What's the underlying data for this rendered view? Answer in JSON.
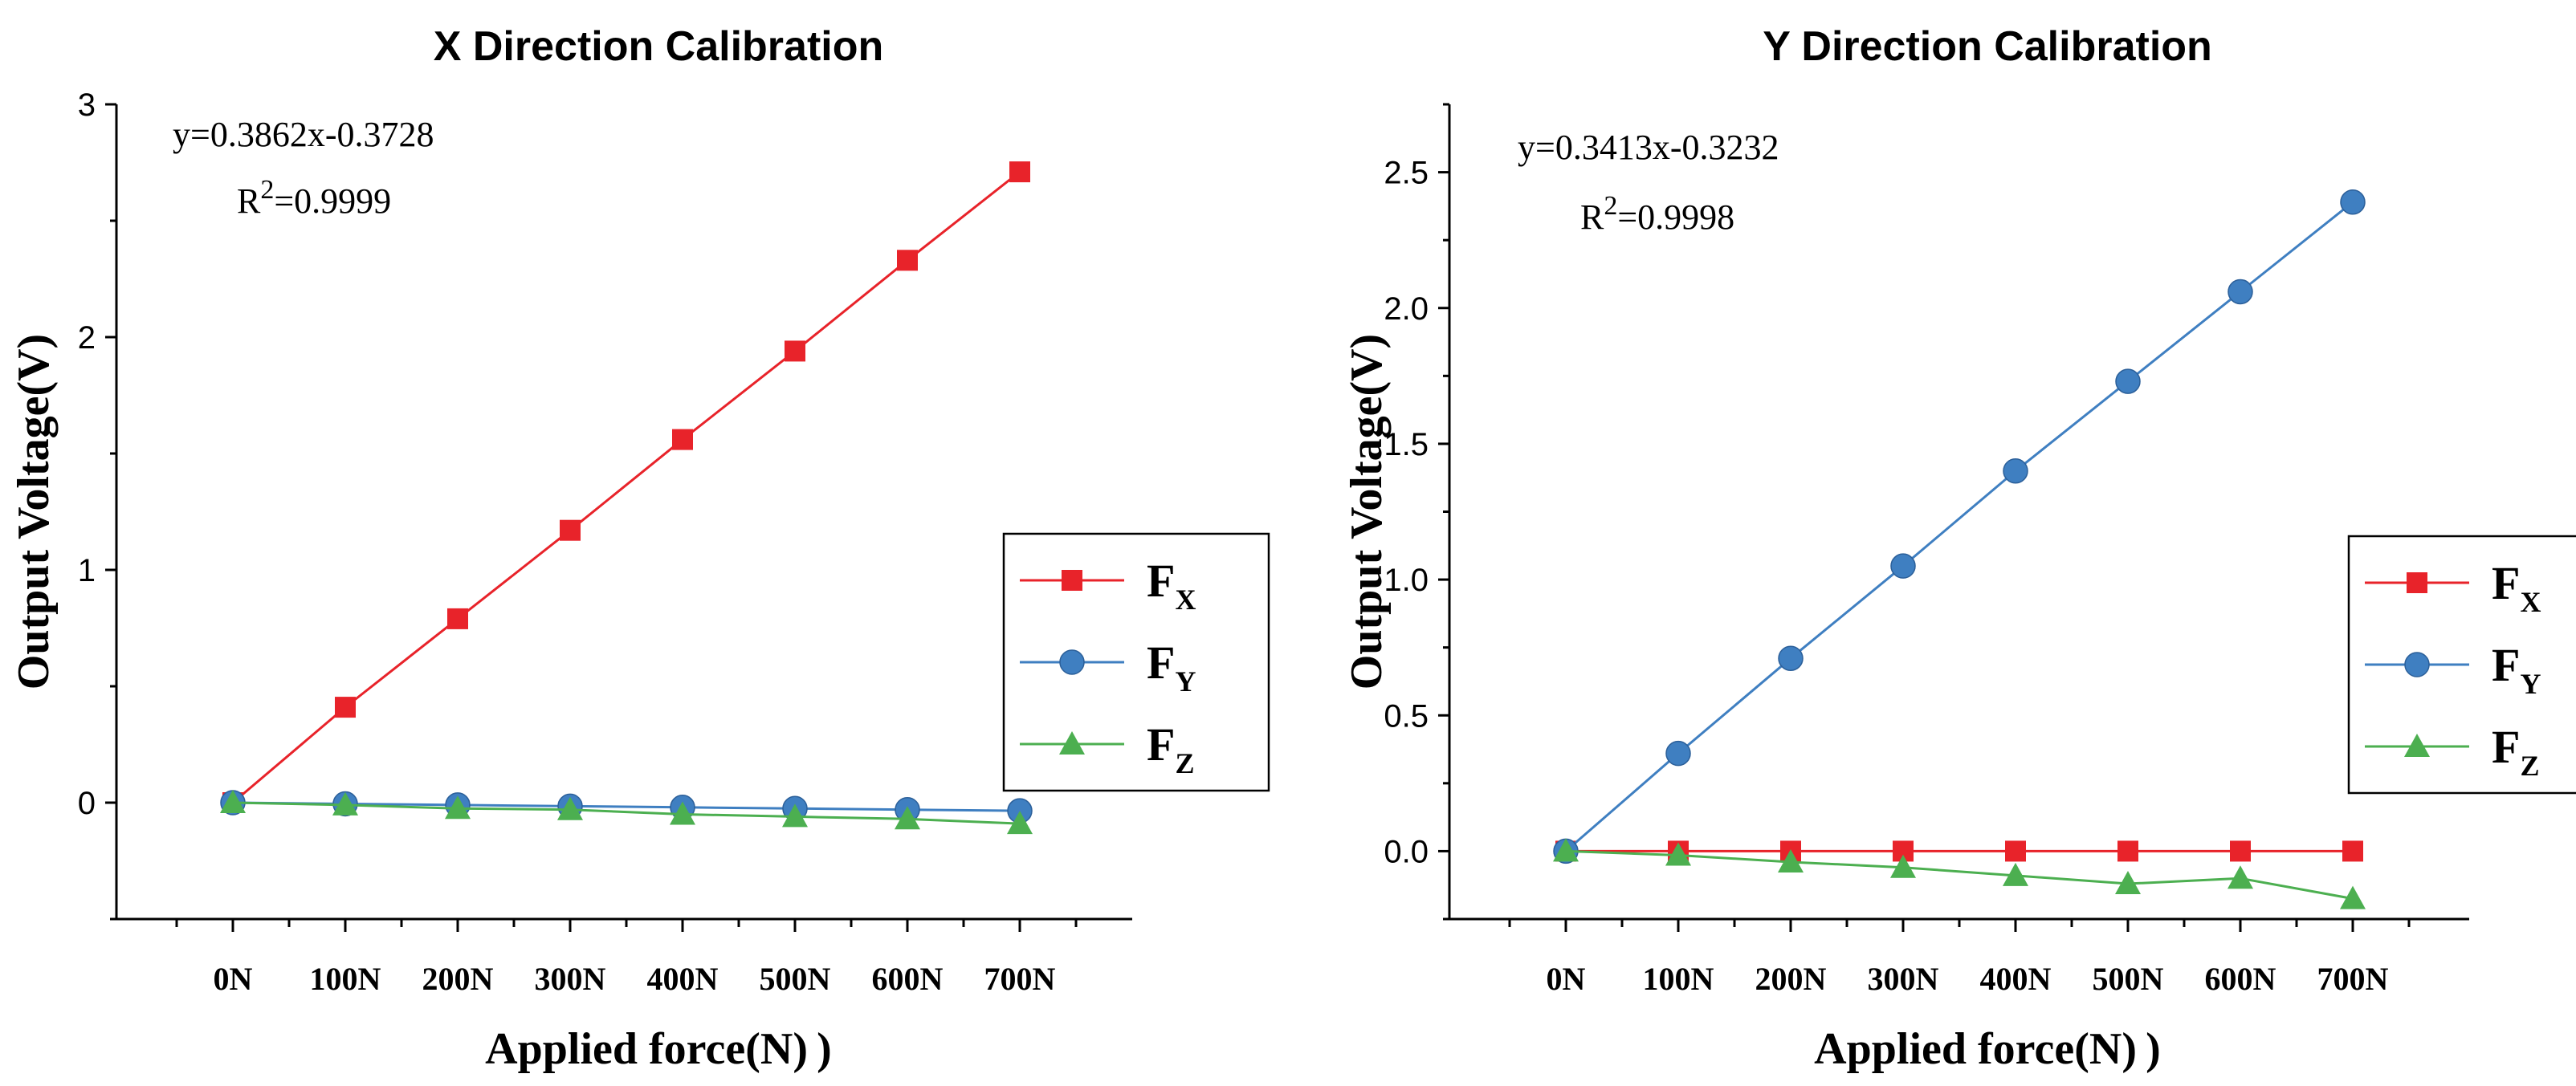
{
  "chart_data": [
    {
      "type": "line",
      "title": "X Direction Calibration",
      "xlabel": "Applied force(N) )",
      "ylabel": "Output Voltage(V)",
      "categories": [
        "0N",
        "100N",
        "200N",
        "300N",
        "400N",
        "500N",
        "600N",
        "700N"
      ],
      "ylim": [
        -0.5,
        3
      ],
      "yticks": [
        0,
        1,
        2,
        3
      ],
      "ytick_labels": [
        "0",
        "1",
        "2",
        "3"
      ],
      "annotation": {
        "equation": "y=0.3862x-0.3728",
        "r2_prefix": "R",
        "r2_sup": "2",
        "r2_value": "=0.9999"
      },
      "legend": {
        "placement": "right"
      },
      "series": [
        {
          "name": "F",
          "subscript": "X",
          "color": "#e8232a",
          "marker": "square",
          "values": [
            0,
            0.41,
            0.79,
            1.17,
            1.56,
            1.94,
            2.33,
            2.71
          ]
        },
        {
          "name": "F",
          "subscript": "Y",
          "color": "#3f7fc1",
          "marker": "circle",
          "values": [
            0,
            -0.005,
            -0.01,
            -0.015,
            -0.02,
            -0.025,
            -0.03,
            -0.035
          ]
        },
        {
          "name": "F",
          "subscript": "Z",
          "color": "#4caf50",
          "marker": "triangle",
          "values": [
            0,
            -0.01,
            -0.025,
            -0.03,
            -0.05,
            -0.06,
            -0.07,
            -0.09
          ]
        }
      ]
    },
    {
      "type": "line",
      "title": "Y Direction Calibration",
      "xlabel": "Applied force(N) )",
      "ylabel": "Output Voltage(V)",
      "categories": [
        "0N",
        "100N",
        "200N",
        "300N",
        "400N",
        "500N",
        "600N",
        "700N"
      ],
      "ylim": [
        -0.25,
        2.75
      ],
      "yticks": [
        0,
        0.5,
        1,
        1.5,
        2,
        2.5
      ],
      "ytick_labels": [
        "0.0",
        "0.5",
        "1.0",
        "1.5",
        "2.0",
        "2.5"
      ],
      "annotation": {
        "equation": "y=0.3413x-0.3232",
        "r2_prefix": "R",
        "r2_sup": "2",
        "r2_value": "=0.9998"
      },
      "legend": {
        "placement": "right"
      },
      "series": [
        {
          "name": "F",
          "subscript": "X",
          "color": "#e8232a",
          "marker": "square",
          "values": [
            0,
            0,
            0,
            0,
            0,
            0,
            0,
            0
          ]
        },
        {
          "name": "F",
          "subscript": "Y",
          "color": "#3f7fc1",
          "marker": "circle",
          "values": [
            0,
            0.36,
            0.71,
            1.05,
            1.4,
            1.73,
            2.06,
            2.39
          ]
        },
        {
          "name": "F",
          "subscript": "Z",
          "color": "#4caf50",
          "marker": "triangle",
          "values": [
            0,
            -0.015,
            -0.04,
            -0.06,
            -0.09,
            -0.12,
            -0.1,
            -0.175
          ]
        }
      ]
    }
  ]
}
